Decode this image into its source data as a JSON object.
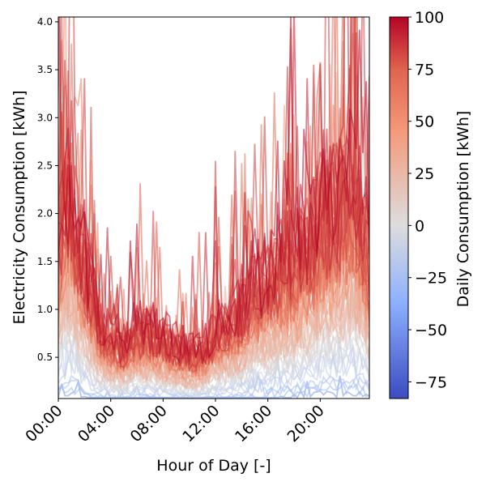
{
  "chart_data": {
    "type": "line",
    "title": "",
    "xlabel": "Hour of Day [-]",
    "ylabel": "Electricity Consumption [kWh]",
    "xlim": [
      "00:00",
      "23:45"
    ],
    "ylim": [
      0.07,
      4.05
    ],
    "x_tick_labels": [
      "00:00",
      "04:00",
      "08:00",
      "12:00",
      "16:00",
      "20:00"
    ],
    "y_tick_values": [
      0.5,
      1.0,
      1.5,
      2.0,
      2.5,
      3.0,
      3.5,
      4.0
    ],
    "y_tick_labels": [
      "0.5",
      "1.0",
      "1.5",
      "2.0",
      "2.5",
      "3.0",
      "3.5",
      "4.0"
    ],
    "colorbar": {
      "label": "Daily Consumption [kWh]",
      "colormap": "coolwarm",
      "range": [
        -83,
        100
      ],
      "tick_values": [
        -75,
        -50,
        -25,
        0,
        25,
        50,
        75,
        100
      ],
      "tick_labels": [
        "−75",
        "−50",
        "−25",
        "0",
        "25",
        "50",
        "75",
        "100"
      ]
    },
    "profile_envelope": {
      "hours": [
        0,
        0.5,
        1,
        1.5,
        2,
        2.5,
        3,
        3.5,
        4,
        5,
        6,
        7,
        8,
        9,
        10,
        11,
        12,
        13,
        14,
        15,
        16,
        17,
        18,
        19,
        20,
        21,
        22,
        22.5,
        23,
        23.75
      ],
      "typical_peak_kwh": [
        2.2,
        2.8,
        3.0,
        2.3,
        1.9,
        1.6,
        1.2,
        1.0,
        0.9,
        0.8,
        1.0,
        1.0,
        0.9,
        0.8,
        0.7,
        0.75,
        1.0,
        1.1,
        1.3,
        1.6,
        1.7,
        1.9,
        2.0,
        2.2,
        2.6,
        2.7,
        2.8,
        3.0,
        2.7,
        2.0
      ]
    },
    "series_count": 60,
    "grid": false,
    "legend": "none"
  }
}
